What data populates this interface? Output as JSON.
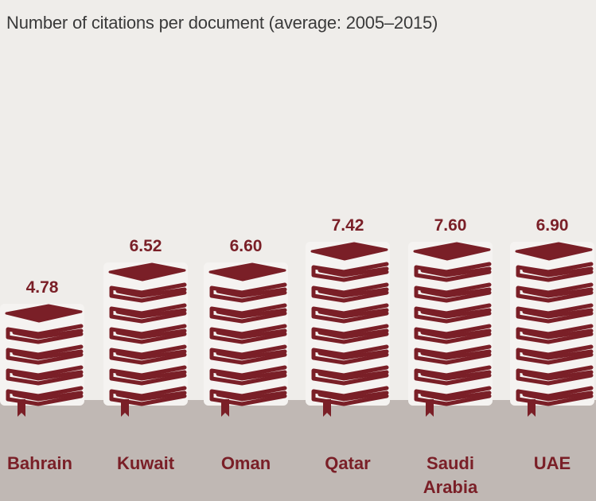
{
  "chart_data": {
    "type": "bar",
    "style": "pictogram (stacked book icons)",
    "title": "Number of citations per document (average: 2005–2015)",
    "xlabel": "",
    "ylabel": "",
    "grid": false,
    "legend": "none",
    "categories": [
      "Bahrain",
      "Kuwait",
      "Oman",
      "Qatar",
      "Saudi Arabia",
      "UAE"
    ],
    "category_lines": [
      [
        "Bahrain"
      ],
      [
        "Kuwait"
      ],
      [
        "Oman"
      ],
      [
        "Qatar"
      ],
      [
        "Saudi",
        "Arabia"
      ],
      [
        "UAE"
      ]
    ],
    "values": [
      4.78,
      6.52,
      6.6,
      7.42,
      7.6,
      6.9
    ],
    "value_labels": [
      "4.78",
      "6.52",
      "6.60",
      "7.42",
      "7.60",
      "6.90"
    ],
    "books_per_stack": [
      4,
      6,
      6,
      7,
      7,
      7
    ],
    "colors": {
      "mark": "#7a1f27",
      "background": "#efedea",
      "ground": "#c0b8b4",
      "title": "#3a3a3a"
    }
  }
}
